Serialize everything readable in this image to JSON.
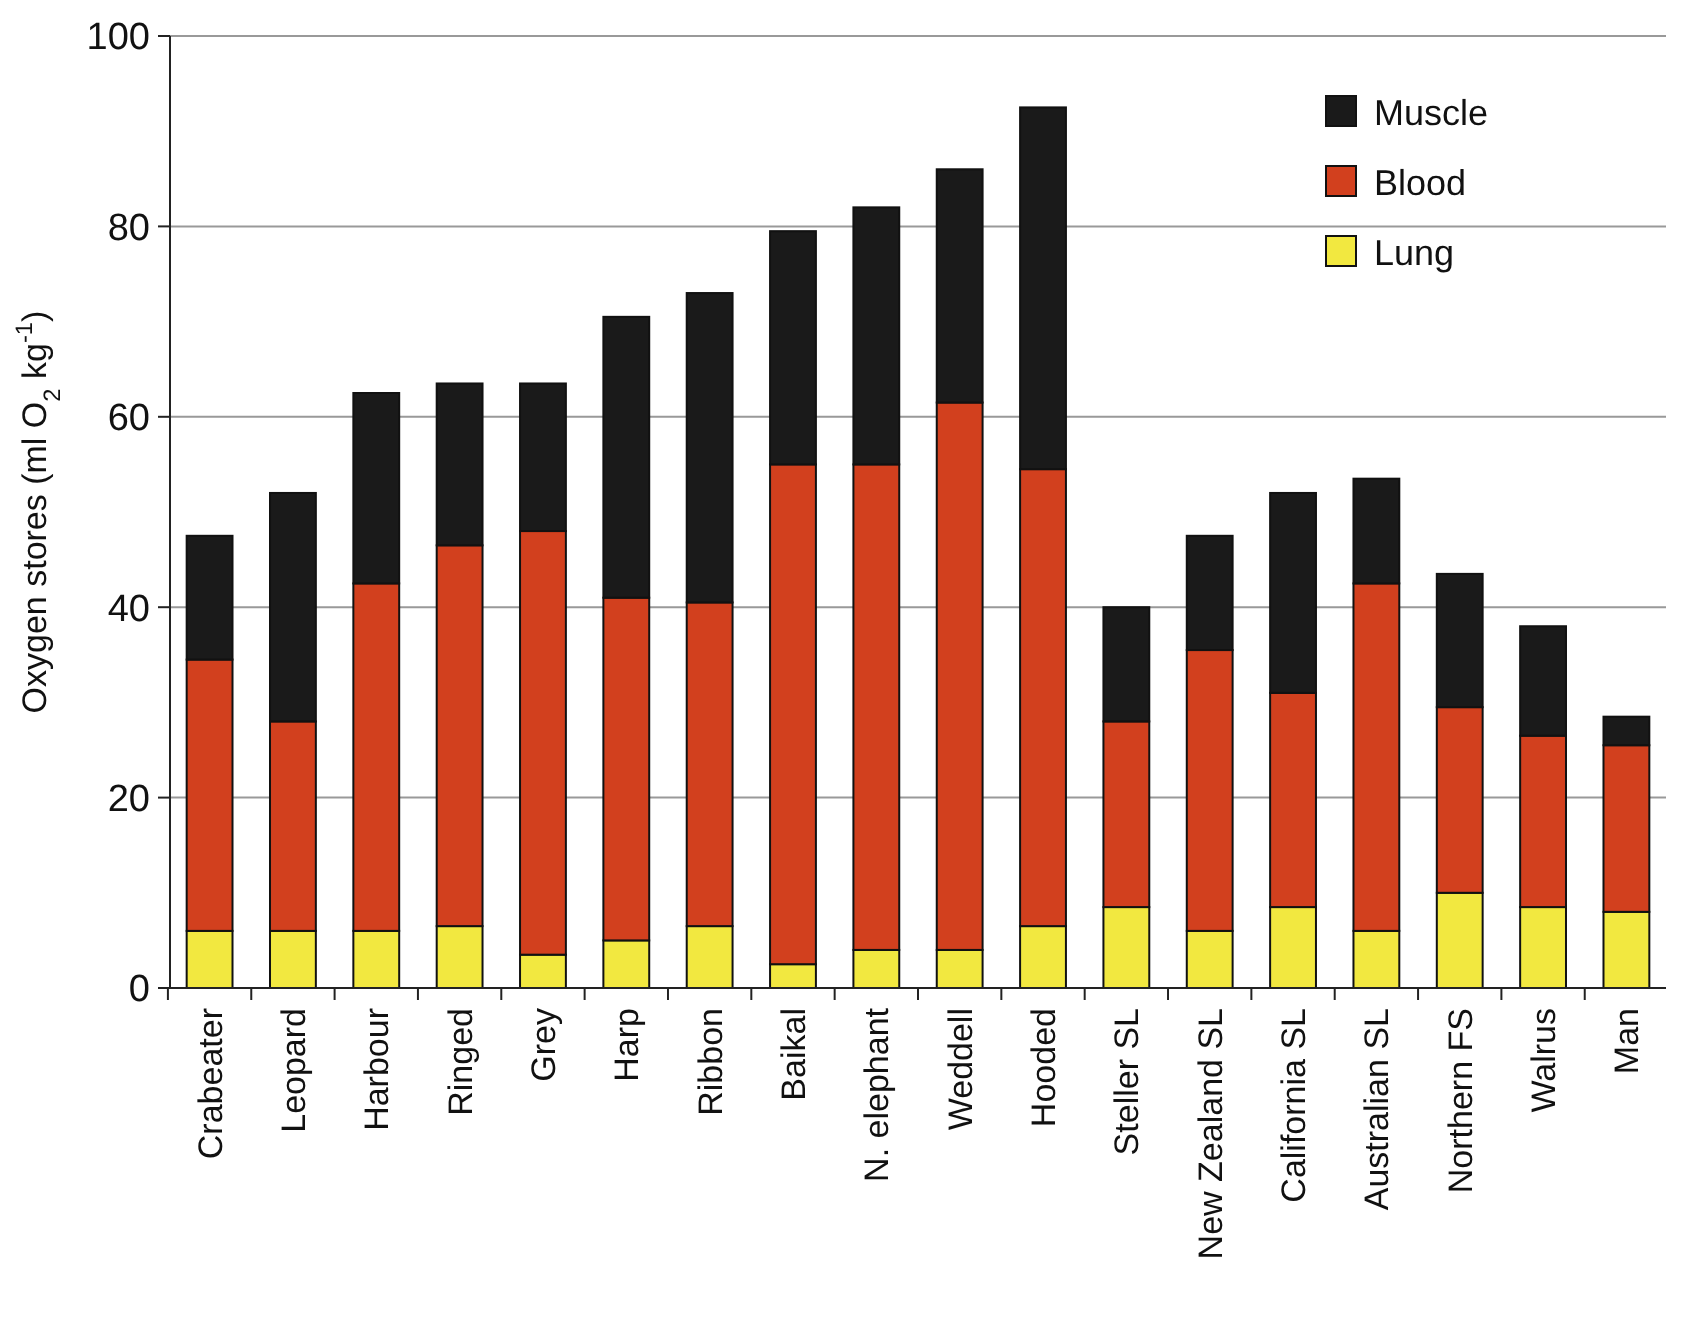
{
  "chart_data": {
    "type": "bar",
    "stacked": true,
    "ylabel": "Oxygen stores (ml O$_{2}$ kg$^{-1}$)",
    "categories": [
      "Crabeater",
      "Leopard",
      "Harbour",
      "Ringed",
      "Grey",
      "Harp",
      "Ribbon",
      "Baikal",
      "N. elephant",
      "Weddell",
      "Hooded",
      "Steller SL",
      "New Zealand SL",
      "California SL",
      "Australian SL",
      "Northern FS",
      "Walrus",
      "Man"
    ],
    "series": [
      {
        "name": "Lung",
        "color": "#f2e840",
        "values": [
          6,
          6,
          6,
          6.5,
          3.5,
          5,
          6.5,
          2.5,
          4,
          4,
          6.5,
          8.5,
          6,
          8.5,
          6,
          10,
          8.5,
          8
        ]
      },
      {
        "name": "Blood",
        "color": "#d2401e",
        "values": [
          28.5,
          22,
          36.5,
          40,
          44.5,
          36,
          34,
          52.5,
          51,
          57.5,
          48,
          19.5,
          29.5,
          22.5,
          36.5,
          19.5,
          18,
          17.5
        ]
      },
      {
        "name": "Muscle",
        "color": "#1a1a1a",
        "values": [
          13,
          24,
          20,
          17,
          15.5,
          29.5,
          32.5,
          24.5,
          27,
          24.5,
          38,
          12,
          12,
          21,
          11,
          14,
          11.5,
          3
        ]
      }
    ],
    "ylim": [
      0,
      100
    ],
    "yticks": [
      0,
      20,
      40,
      60,
      80,
      100
    ],
    "grid": "y",
    "legend": "top right"
  }
}
